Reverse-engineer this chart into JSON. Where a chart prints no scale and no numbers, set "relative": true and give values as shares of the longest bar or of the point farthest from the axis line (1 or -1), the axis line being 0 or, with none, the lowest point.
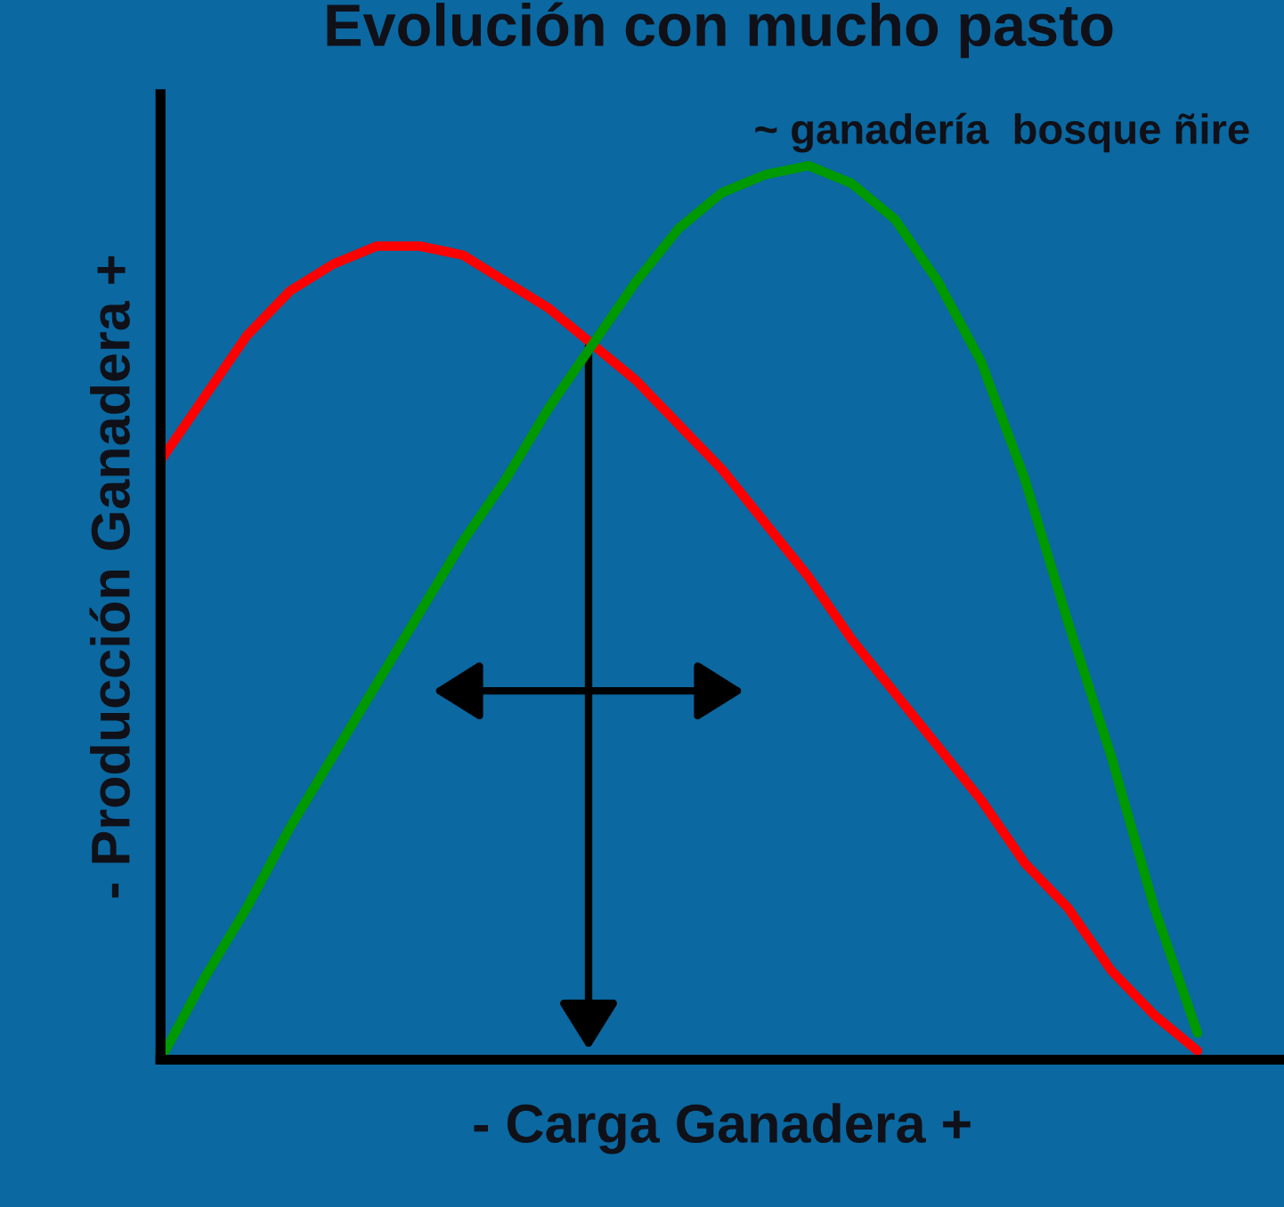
{
  "chart_data": {
    "type": "line",
    "relative": true,
    "title": "Evolución con mucho pasto",
    "subtitle": "~ ganadería  bosque ñire",
    "xlabel": "- Carga Ganadera +",
    "ylabel": "- Producción Ganadera +",
    "categories": [
      null,
      null,
      null,
      null,
      null,
      null,
      null,
      null,
      null,
      null,
      null,
      null,
      null,
      null,
      null,
      null,
      null,
      null,
      null,
      null,
      null,
      null,
      null,
      null,
      null,
      null,
      null
    ],
    "series": [
      {
        "color": "#ff0000",
        "values": [
          0.67,
          0.74,
          0.81,
          0.86,
          0.89,
          0.91,
          0.91,
          0.9,
          0.87,
          0.84,
          0.8,
          0.76,
          0.71,
          0.66,
          0.6,
          0.54,
          0.47,
          0.41,
          0.35,
          0.29,
          0.22,
          0.17,
          0.1,
          0.05,
          0.01,
          null,
          null
        ]
      },
      {
        "color": "#009900",
        "values": [
          0,
          0.09,
          0.17,
          0.26,
          0.34,
          0.42,
          0.5,
          0.58,
          0.65,
          0.73,
          0.8,
          0.87,
          0.93,
          0.97,
          0.99,
          1.0,
          0.98,
          0.94,
          0.87,
          0.78,
          0.65,
          0.49,
          0.34,
          0.17,
          0.03,
          null,
          null
        ]
      }
    ]
  }
}
